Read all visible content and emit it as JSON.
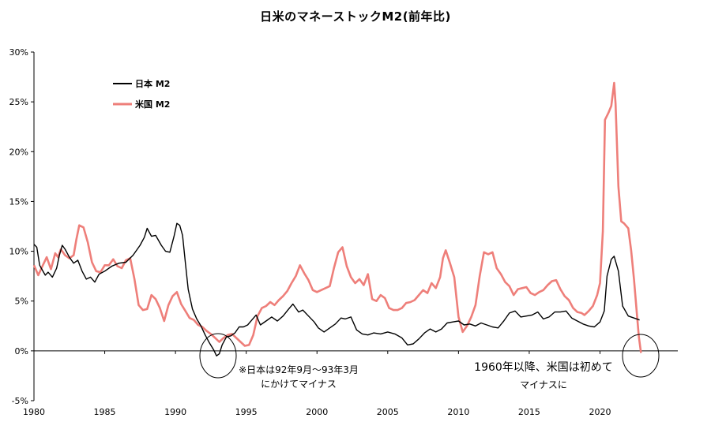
{
  "chart_data": {
    "type": "line",
    "title": "日米のマネーストックM2(前年比)",
    "xlabel": "",
    "ylabel": "",
    "xlim": [
      1980,
      2025.5
    ],
    "ylim": [
      -5,
      30
    ],
    "y_ticks": [
      "30%",
      "25%",
      "20%",
      "15%",
      "10%",
      "5%",
      "0%",
      "-5%"
    ],
    "y_tick_values": [
      30,
      25,
      20,
      15,
      10,
      5,
      0,
      -5
    ],
    "x_ticks": [
      "1980",
      "1985",
      "1990",
      "1995",
      "2000",
      "2005",
      "2010",
      "2015",
      "2020"
    ],
    "x_tick_values": [
      1980,
      1985,
      1990,
      1995,
      2000,
      2005,
      2010,
      2015,
      2020
    ],
    "legend_position": "top-left",
    "series": [
      {
        "name": "日本 M2",
        "color": "#000000",
        "points": [
          [
            1980.0,
            10.7
          ],
          [
            1980.2,
            10.4
          ],
          [
            1980.4,
            8.6
          ],
          [
            1980.6,
            8.1
          ],
          [
            1980.8,
            7.6
          ],
          [
            1981.0,
            7.9
          ],
          [
            1981.3,
            7.4
          ],
          [
            1981.6,
            8.3
          ],
          [
            1981.8,
            9.6
          ],
          [
            1982.0,
            10.6
          ],
          [
            1982.2,
            10.2
          ],
          [
            1982.5,
            9.4
          ],
          [
            1982.8,
            8.8
          ],
          [
            1983.1,
            9.1
          ],
          [
            1983.4,
            8.0
          ],
          [
            1983.7,
            7.2
          ],
          [
            1984.0,
            7.4
          ],
          [
            1984.3,
            6.9
          ],
          [
            1984.6,
            7.7
          ],
          [
            1985.0,
            8.0
          ],
          [
            1985.5,
            8.5
          ],
          [
            1986.0,
            8.8
          ],
          [
            1986.5,
            8.9
          ],
          [
            1987.0,
            9.6
          ],
          [
            1987.5,
            10.6
          ],
          [
            1987.8,
            11.4
          ],
          [
            1988.0,
            12.3
          ],
          [
            1988.3,
            11.5
          ],
          [
            1988.6,
            11.6
          ],
          [
            1989.0,
            10.6
          ],
          [
            1989.3,
            10.0
          ],
          [
            1989.6,
            9.9
          ],
          [
            1989.9,
            11.5
          ],
          [
            1990.1,
            12.8
          ],
          [
            1990.3,
            12.6
          ],
          [
            1990.5,
            11.6
          ],
          [
            1990.7,
            8.8
          ],
          [
            1990.9,
            6.2
          ],
          [
            1991.2,
            4.2
          ],
          [
            1991.5,
            3.2
          ],
          [
            1991.8,
            2.5
          ],
          [
            1992.1,
            1.6
          ],
          [
            1992.4,
            0.8
          ],
          [
            1992.7,
            0.1
          ],
          [
            1992.9,
            -0.5
          ],
          [
            1993.1,
            -0.3
          ],
          [
            1993.3,
            0.6
          ],
          [
            1993.6,
            1.4
          ],
          [
            1993.9,
            1.5
          ],
          [
            1994.2,
            1.8
          ],
          [
            1994.5,
            2.4
          ],
          [
            1994.8,
            2.4
          ],
          [
            1995.1,
            2.6
          ],
          [
            1995.4,
            3.1
          ],
          [
            1995.7,
            3.6
          ],
          [
            1996.0,
            2.6
          ],
          [
            1996.4,
            3.0
          ],
          [
            1996.8,
            3.4
          ],
          [
            1997.2,
            3.0
          ],
          [
            1997.6,
            3.5
          ],
          [
            1998.0,
            4.2
          ],
          [
            1998.3,
            4.7
          ],
          [
            1998.7,
            3.9
          ],
          [
            1999.0,
            4.1
          ],
          [
            1999.4,
            3.5
          ],
          [
            1999.8,
            2.9
          ],
          [
            2000.1,
            2.3
          ],
          [
            2000.5,
            1.9
          ],
          [
            2000.9,
            2.3
          ],
          [
            2001.3,
            2.7
          ],
          [
            2001.7,
            3.3
          ],
          [
            2002.0,
            3.2
          ],
          [
            2002.4,
            3.4
          ],
          [
            2002.8,
            2.1
          ],
          [
            2003.2,
            1.7
          ],
          [
            2003.6,
            1.6
          ],
          [
            2004.0,
            1.8
          ],
          [
            2004.5,
            1.7
          ],
          [
            2005.0,
            1.9
          ],
          [
            2005.5,
            1.7
          ],
          [
            2006.0,
            1.3
          ],
          [
            2006.4,
            0.6
          ],
          [
            2006.8,
            0.7
          ],
          [
            2007.2,
            1.2
          ],
          [
            2007.6,
            1.8
          ],
          [
            2008.0,
            2.2
          ],
          [
            2008.4,
            1.9
          ],
          [
            2008.8,
            2.2
          ],
          [
            2009.2,
            2.8
          ],
          [
            2009.6,
            2.9
          ],
          [
            2010.0,
            3.0
          ],
          [
            2010.4,
            2.6
          ],
          [
            2010.8,
            2.7
          ],
          [
            2011.2,
            2.5
          ],
          [
            2011.6,
            2.8
          ],
          [
            2012.0,
            2.6
          ],
          [
            2012.4,
            2.4
          ],
          [
            2012.8,
            2.3
          ],
          [
            2013.2,
            3.0
          ],
          [
            2013.6,
            3.8
          ],
          [
            2014.0,
            4.0
          ],
          [
            2014.4,
            3.4
          ],
          [
            2014.8,
            3.5
          ],
          [
            2015.2,
            3.6
          ],
          [
            2015.6,
            3.9
          ],
          [
            2016.0,
            3.2
          ],
          [
            2016.4,
            3.4
          ],
          [
            2016.8,
            3.9
          ],
          [
            2017.2,
            3.9
          ],
          [
            2017.6,
            4.0
          ],
          [
            2018.0,
            3.3
          ],
          [
            2018.4,
            3.0
          ],
          [
            2018.8,
            2.7
          ],
          [
            2019.2,
            2.5
          ],
          [
            2019.6,
            2.4
          ],
          [
            2020.0,
            2.9
          ],
          [
            2020.3,
            4.0
          ],
          [
            2020.5,
            7.5
          ],
          [
            2020.8,
            9.2
          ],
          [
            2021.0,
            9.5
          ],
          [
            2021.3,
            8.0
          ],
          [
            2021.6,
            4.5
          ],
          [
            2022.0,
            3.5
          ],
          [
            2022.4,
            3.3
          ],
          [
            2022.8,
            3.1
          ]
        ]
      },
      {
        "name": "米国 M2",
        "color": "#ee7f7a",
        "points": [
          [
            1980.0,
            8.6
          ],
          [
            1980.3,
            7.6
          ],
          [
            1980.6,
            8.5
          ],
          [
            1980.9,
            9.4
          ],
          [
            1981.2,
            8.2
          ],
          [
            1981.5,
            9.8
          ],
          [
            1981.7,
            9.4
          ],
          [
            1981.9,
            10.2
          ],
          [
            1982.2,
            9.6
          ],
          [
            1982.5,
            9.3
          ],
          [
            1982.8,
            9.6
          ],
          [
            1983.0,
            11.2
          ],
          [
            1983.2,
            12.6
          ],
          [
            1983.5,
            12.4
          ],
          [
            1983.8,
            10.9
          ],
          [
            1984.1,
            8.9
          ],
          [
            1984.4,
            8.0
          ],
          [
            1984.7,
            7.9
          ],
          [
            1985.0,
            8.6
          ],
          [
            1985.3,
            8.6
          ],
          [
            1985.6,
            9.2
          ],
          [
            1985.9,
            8.5
          ],
          [
            1986.2,
            8.3
          ],
          [
            1986.5,
            9.1
          ],
          [
            1986.8,
            9.3
          ],
          [
            1987.1,
            7.2
          ],
          [
            1987.4,
            4.6
          ],
          [
            1987.7,
            4.1
          ],
          [
            1988.0,
            4.2
          ],
          [
            1988.3,
            5.6
          ],
          [
            1988.6,
            5.2
          ],
          [
            1988.9,
            4.3
          ],
          [
            1989.2,
            3.0
          ],
          [
            1989.5,
            4.6
          ],
          [
            1989.8,
            5.5
          ],
          [
            1990.1,
            5.9
          ],
          [
            1990.4,
            4.7
          ],
          [
            1990.7,
            4.0
          ],
          [
            1991.0,
            3.3
          ],
          [
            1991.3,
            3.1
          ],
          [
            1991.6,
            2.6
          ],
          [
            1991.9,
            2.4
          ],
          [
            1992.2,
            2.0
          ],
          [
            1992.5,
            1.7
          ],
          [
            1992.8,
            1.3
          ],
          [
            1993.1,
            0.9
          ],
          [
            1993.4,
            1.3
          ],
          [
            1993.7,
            1.6
          ],
          [
            1994.0,
            1.7
          ],
          [
            1994.3,
            1.3
          ],
          [
            1994.6,
            0.9
          ],
          [
            1994.9,
            0.5
          ],
          [
            1995.2,
            0.6
          ],
          [
            1995.5,
            1.6
          ],
          [
            1995.8,
            3.5
          ],
          [
            1996.1,
            4.3
          ],
          [
            1996.4,
            4.5
          ],
          [
            1996.7,
            4.9
          ],
          [
            1997.0,
            4.6
          ],
          [
            1997.3,
            5.1
          ],
          [
            1997.6,
            5.5
          ],
          [
            1997.9,
            6.0
          ],
          [
            1998.2,
            6.8
          ],
          [
            1998.5,
            7.5
          ],
          [
            1998.8,
            8.6
          ],
          [
            1999.1,
            7.8
          ],
          [
            1999.4,
            7.1
          ],
          [
            1999.7,
            6.1
          ],
          [
            2000.0,
            5.9
          ],
          [
            2000.3,
            6.1
          ],
          [
            2000.6,
            6.3
          ],
          [
            2000.9,
            6.5
          ],
          [
            2001.2,
            8.3
          ],
          [
            2001.5,
            9.9
          ],
          [
            2001.8,
            10.4
          ],
          [
            2002.1,
            8.5
          ],
          [
            2002.4,
            7.4
          ],
          [
            2002.7,
            6.8
          ],
          [
            2003.0,
            7.2
          ],
          [
            2003.3,
            6.6
          ],
          [
            2003.6,
            7.7
          ],
          [
            2003.9,
            5.2
          ],
          [
            2004.2,
            5.0
          ],
          [
            2004.5,
            5.6
          ],
          [
            2004.8,
            5.3
          ],
          [
            2005.1,
            4.3
          ],
          [
            2005.4,
            4.1
          ],
          [
            2005.7,
            4.1
          ],
          [
            2006.0,
            4.3
          ],
          [
            2006.3,
            4.8
          ],
          [
            2006.6,
            4.9
          ],
          [
            2006.9,
            5.1
          ],
          [
            2007.2,
            5.6
          ],
          [
            2007.5,
            6.1
          ],
          [
            2007.8,
            5.8
          ],
          [
            2008.1,
            6.8
          ],
          [
            2008.4,
            6.3
          ],
          [
            2008.7,
            7.4
          ],
          [
            2008.9,
            9.3
          ],
          [
            2009.1,
            10.1
          ],
          [
            2009.4,
            8.8
          ],
          [
            2009.7,
            7.4
          ],
          [
            2010.0,
            3.4
          ],
          [
            2010.3,
            1.9
          ],
          [
            2010.6,
            2.5
          ],
          [
            2010.9,
            3.4
          ],
          [
            2011.2,
            4.6
          ],
          [
            2011.5,
            7.5
          ],
          [
            2011.8,
            9.9
          ],
          [
            2012.1,
            9.7
          ],
          [
            2012.4,
            9.9
          ],
          [
            2012.7,
            8.3
          ],
          [
            2013.0,
            7.7
          ],
          [
            2013.3,
            6.9
          ],
          [
            2013.6,
            6.5
          ],
          [
            2013.9,
            5.6
          ],
          [
            2014.2,
            6.2
          ],
          [
            2014.5,
            6.3
          ],
          [
            2014.8,
            6.4
          ],
          [
            2015.1,
            5.8
          ],
          [
            2015.4,
            5.6
          ],
          [
            2015.7,
            5.9
          ],
          [
            2016.0,
            6.1
          ],
          [
            2016.3,
            6.6
          ],
          [
            2016.6,
            7.0
          ],
          [
            2016.9,
            7.1
          ],
          [
            2017.2,
            6.2
          ],
          [
            2017.5,
            5.5
          ],
          [
            2017.8,
            5.1
          ],
          [
            2018.1,
            4.3
          ],
          [
            2018.4,
            3.9
          ],
          [
            2018.7,
            3.8
          ],
          [
            2018.9,
            3.6
          ],
          [
            2019.2,
            4.0
          ],
          [
            2019.5,
            4.5
          ],
          [
            2019.8,
            5.6
          ],
          [
            2020.0,
            6.8
          ],
          [
            2020.2,
            12.0
          ],
          [
            2020.35,
            23.2
          ],
          [
            2020.6,
            23.9
          ],
          [
            2020.8,
            24.6
          ],
          [
            2021.0,
            26.9
          ],
          [
            2021.1,
            24.8
          ],
          [
            2021.3,
            16.5
          ],
          [
            2021.5,
            13.0
          ],
          [
            2021.7,
            12.8
          ],
          [
            2022.0,
            12.3
          ],
          [
            2022.2,
            10.1
          ],
          [
            2022.4,
            7.2
          ],
          [
            2022.6,
            3.8
          ],
          [
            2022.75,
            1.4
          ],
          [
            2022.9,
            -0.2
          ]
        ]
      }
    ],
    "annotations": [
      {
        "lines": [
          "※日本は92年9月～93年3月",
          "にかけてマイナス"
        ]
      },
      {
        "lines": [
          "1960年以降、米国は初めて",
          "マイナスに"
        ]
      }
    ]
  }
}
